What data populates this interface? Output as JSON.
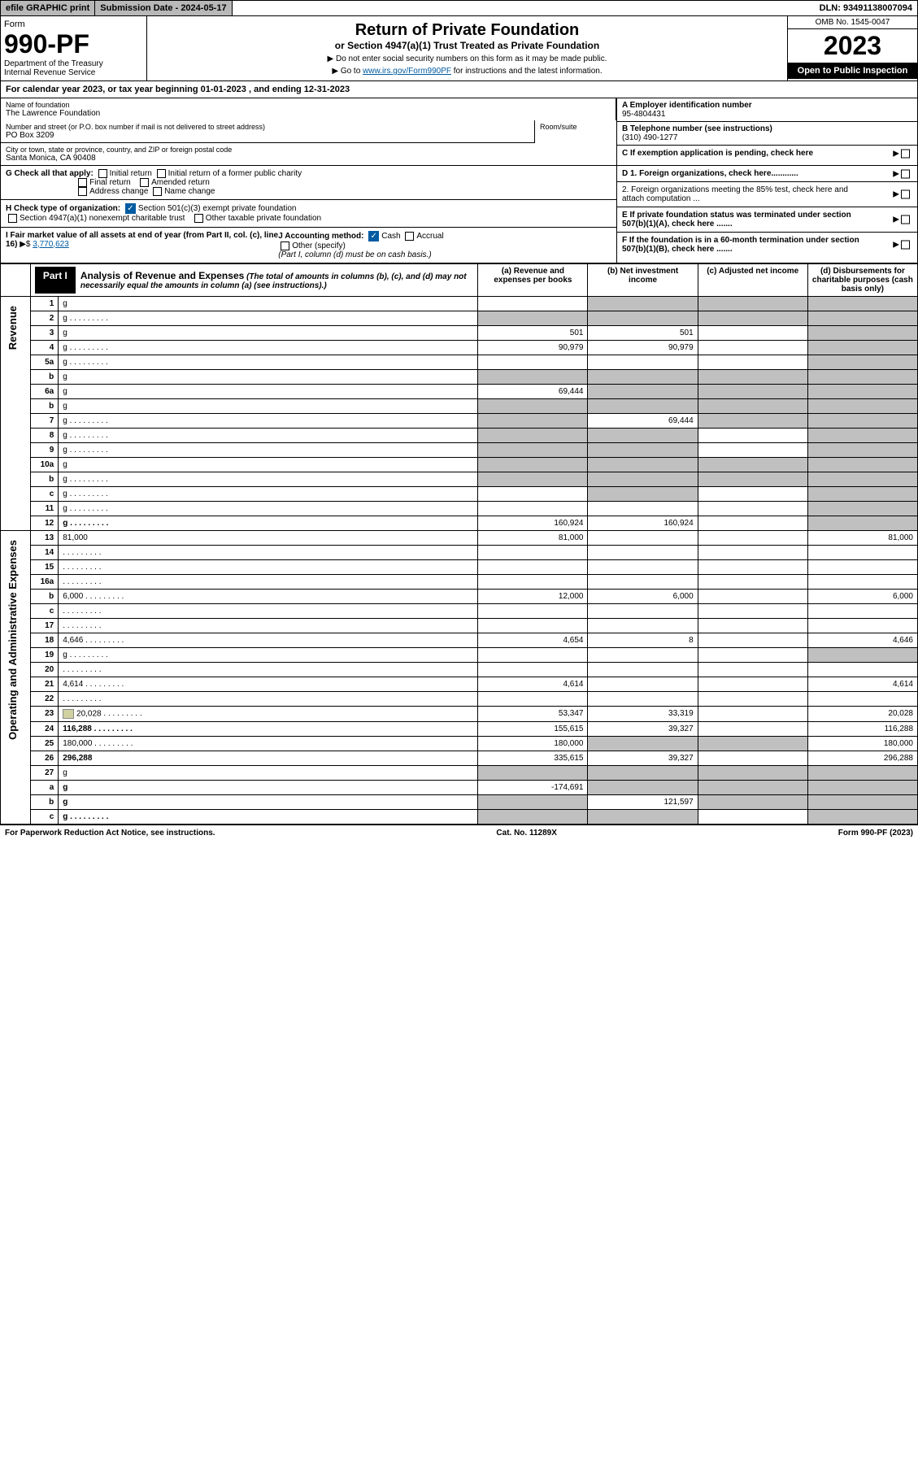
{
  "topbar": {
    "efile": "efile GRAPHIC print",
    "subdate": "Submission Date - 2024-05-17",
    "dln": "DLN: 93491138007094"
  },
  "header": {
    "form_label": "Form",
    "form_num": "990-PF",
    "dept": "Department of the Treasury\nInternal Revenue Service",
    "title": "Return of Private Foundation",
    "subtitle": "or Section 4947(a)(1) Trust Treated as Private Foundation",
    "instr1": "▶ Do not enter social security numbers on this form as it may be made public.",
    "instr2_pre": "▶ Go to ",
    "instr2_link": "www.irs.gov/Form990PF",
    "instr2_post": " for instructions and the latest information.",
    "omb": "OMB No. 1545-0047",
    "year": "2023",
    "open_pub": "Open to Public Inspection"
  },
  "calyear": "For calendar year 2023, or tax year beginning 01-01-2023              , and ending 12-31-2023",
  "info": {
    "name_label": "Name of foundation",
    "name": "The Lawrence Foundation",
    "addr_label": "Number and street (or P.O. box number if mail is not delivered to street address)",
    "addr": "PO Box 3209",
    "room_label": "Room/suite",
    "city_label": "City or town, state or province, country, and ZIP or foreign postal code",
    "city": "Santa Monica, CA  90408",
    "ein_label": "A Employer identification number",
    "ein": "95-4804431",
    "tel_label": "B Telephone number (see instructions)",
    "tel": "(310) 490-1277",
    "c": "C If exemption application is pending, check here",
    "d1": "D 1. Foreign organizations, check here............",
    "d2": "2. Foreign organizations meeting the 85% test, check here and attach computation ...",
    "e": "E  If private foundation status was terminated under section 507(b)(1)(A), check here .......",
    "f": "F  If the foundation is in a 60-month termination under section 507(b)(1)(B), check here .......",
    "g_label": "G Check all that apply:",
    "g_opts": [
      "Initial return",
      "Initial return of a former public charity",
      "Final return",
      "Amended return",
      "Address change",
      "Name change"
    ],
    "h_label": "H Check type of organization:",
    "h1": "Section 501(c)(3) exempt private foundation",
    "h2": "Section 4947(a)(1) nonexempt charitable trust",
    "h3": "Other taxable private foundation",
    "i_label": "I Fair market value of all assets at end of year (from Part II, col. (c), line 16)",
    "i_val": "3,770,623",
    "j_label": "J Accounting method:",
    "j_cash": "Cash",
    "j_accrual": "Accrual",
    "j_other": "Other (specify)",
    "j_note": "(Part I, column (d) must be on cash basis.)"
  },
  "part1": {
    "tab": "Part I",
    "title": "Analysis of Revenue and Expenses",
    "note": "(The total of amounts in columns (b), (c), and (d) may not necessarily equal the amounts in column (a) (see instructions).)",
    "col_a": "(a) Revenue and expenses per books",
    "col_b": "(b) Net investment income",
    "col_c": "(c) Adjusted net income",
    "col_d": "(d) Disbursements for charitable purposes (cash basis only)"
  },
  "sides": {
    "rev": "Revenue",
    "op": "Operating and Administrative Expenses"
  },
  "rows": [
    {
      "n": "1",
      "d": "g",
      "a": "",
      "b": "g",
      "c": "g"
    },
    {
      "n": "2",
      "d": "g",
      "dots": true,
      "a": "g",
      "b": "g",
      "c": "g"
    },
    {
      "n": "3",
      "d": "g",
      "a": "501",
      "b": "501",
      "c": ""
    },
    {
      "n": "4",
      "d": "g",
      "dots": true,
      "a": "90,979",
      "b": "90,979",
      "c": ""
    },
    {
      "n": "5a",
      "d": "g",
      "dots": true,
      "a": "",
      "b": "",
      "c": ""
    },
    {
      "n": "b",
      "d": "g",
      "a": "g",
      "b": "g",
      "c": "g"
    },
    {
      "n": "6a",
      "d": "g",
      "a": "69,444",
      "b": "g",
      "c": "g"
    },
    {
      "n": "b",
      "d": "g",
      "a": "g",
      "b": "g",
      "c": "g"
    },
    {
      "n": "7",
      "d": "g",
      "dots": true,
      "a": "g",
      "b": "69,444",
      "c": "g"
    },
    {
      "n": "8",
      "d": "g",
      "dots": true,
      "a": "g",
      "b": "g",
      "c": ""
    },
    {
      "n": "9",
      "d": "g",
      "dots": true,
      "a": "g",
      "b": "g",
      "c": ""
    },
    {
      "n": "10a",
      "d": "g",
      "a": "g",
      "b": "g",
      "c": "g"
    },
    {
      "n": "b",
      "d": "g",
      "dots": true,
      "a": "g",
      "b": "g",
      "c": "g"
    },
    {
      "n": "c",
      "d": "g",
      "dots": true,
      "a": "",
      "b": "g",
      "c": ""
    },
    {
      "n": "11",
      "d": "g",
      "dots": true,
      "a": "",
      "b": "",
      "c": ""
    },
    {
      "n": "12",
      "d": "g",
      "dots": true,
      "bold": true,
      "a": "160,924",
      "b": "160,924",
      "c": ""
    },
    {
      "n": "13",
      "d": "81,000",
      "a": "81,000",
      "b": "",
      "c": ""
    },
    {
      "n": "14",
      "d": "",
      "dots": true,
      "a": "",
      "b": "",
      "c": ""
    },
    {
      "n": "15",
      "d": "",
      "dots": true,
      "a": "",
      "b": "",
      "c": ""
    },
    {
      "n": "16a",
      "d": "",
      "dots": true,
      "a": "",
      "b": "",
      "c": ""
    },
    {
      "n": "b",
      "d": "6,000",
      "dots": true,
      "a": "12,000",
      "b": "6,000",
      "c": ""
    },
    {
      "n": "c",
      "d": "",
      "dots": true,
      "a": "",
      "b": "",
      "c": ""
    },
    {
      "n": "17",
      "d": "",
      "dots": true,
      "a": "",
      "b": "",
      "c": ""
    },
    {
      "n": "18",
      "d": "4,646",
      "dots": true,
      "a": "4,654",
      "b": "8",
      "c": ""
    },
    {
      "n": "19",
      "d": "g",
      "dots": true,
      "a": "",
      "b": "",
      "c": ""
    },
    {
      "n": "20",
      "d": "",
      "dots": true,
      "a": "",
      "b": "",
      "c": ""
    },
    {
      "n": "21",
      "d": "4,614",
      "dots": true,
      "a": "4,614",
      "b": "",
      "c": ""
    },
    {
      "n": "22",
      "d": "",
      "dots": true,
      "a": "",
      "b": "",
      "c": ""
    },
    {
      "n": "23",
      "d": "20,028",
      "dots": true,
      "icon": true,
      "a": "53,347",
      "b": "33,319",
      "c": ""
    },
    {
      "n": "24",
      "d": "116,288",
      "dots": true,
      "bold": true,
      "a": "155,615",
      "b": "39,327",
      "c": ""
    },
    {
      "n": "25",
      "d": "180,000",
      "dots": true,
      "a": "180,000",
      "b": "g",
      "c": "g"
    },
    {
      "n": "26",
      "d": "296,288",
      "bold": true,
      "a": "335,615",
      "b": "39,327",
      "c": ""
    },
    {
      "n": "27",
      "d": "g",
      "a": "g",
      "b": "g",
      "c": "g"
    },
    {
      "n": "a",
      "d": "g",
      "bold": true,
      "a": "-174,691",
      "b": "g",
      "c": "g"
    },
    {
      "n": "b",
      "d": "g",
      "bold": true,
      "a": "g",
      "b": "121,597",
      "c": "g"
    },
    {
      "n": "c",
      "d": "g",
      "dots": true,
      "bold": true,
      "a": "g",
      "b": "g",
      "c": ""
    }
  ],
  "footer": {
    "left": "For Paperwork Reduction Act Notice, see instructions.",
    "center": "Cat. No. 11289X",
    "right": "Form 990-PF (2023)"
  }
}
